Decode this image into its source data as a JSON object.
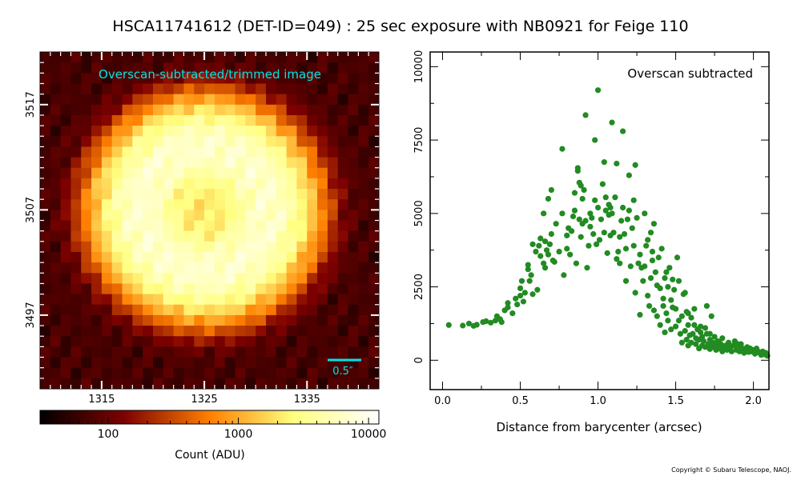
{
  "title": "HSCA11741612 (DET-ID=049) :  25 sec exposure with NB0921 for Feige 110",
  "copyright": "Copyright © Subaru Telescope, NAOJ.",
  "colors": {
    "image_label": "#00e5e5",
    "scale_bar": "#00e5e5",
    "scatter_points": "#228b22"
  },
  "chart_data": [
    {
      "type": "heatmap",
      "label": "Overscan-subtracted/trimmed image",
      "x_ticks": [
        1315,
        1325,
        1335
      ],
      "y_ticks": [
        3497,
        3507,
        3517
      ],
      "xlim": [
        1309,
        1342
      ],
      "ylim": [
        3490,
        3522
      ],
      "scale_bar_label": "0.5″",
      "colormap": "afmhot",
      "description_of_values": "ring-shaped (donut) star image centred near x=1325, y=3507; ring peak ~5000-9000 ADU, central hole ~1500 ADU, background ~50-100 ADU",
      "colorbar": {
        "scale": "log",
        "range": [
          30,
          12000
        ],
        "tick_labels": [
          "100",
          "1000",
          "10000"
        ],
        "tick_values": [
          100,
          1000,
          10000
        ],
        "label": "Count (ADU)"
      }
    },
    {
      "type": "scatter",
      "label": "Overscan subtracted",
      "xlabel": "Distance from barycenter (arcsec)",
      "ylabel": "",
      "xlim": [
        -0.08,
        2.1
      ],
      "ylim": [
        -1000,
        10500
      ],
      "x_ticks": [
        "0.0",
        "0.5",
        "1.0",
        "1.5",
        "2.0"
      ],
      "x_tick_values": [
        0.0,
        0.5,
        1.0,
        1.5,
        2.0
      ],
      "y_ticks": [
        "0",
        "2500",
        "5000",
        "7500",
        "10000"
      ],
      "y_tick_values": [
        0,
        2500,
        5000,
        7500,
        10000
      ],
      "points": [
        [
          0.04,
          1200
        ],
        [
          0.13,
          1180
        ],
        [
          0.17,
          1250
        ],
        [
          0.2,
          1170
        ],
        [
          0.22,
          1210
        ],
        [
          0.26,
          1300
        ],
        [
          0.28,
          1330
        ],
        [
          0.31,
          1280
        ],
        [
          0.34,
          1350
        ],
        [
          0.35,
          1500
        ],
        [
          0.37,
          1400
        ],
        [
          0.38,
          1300
        ],
        [
          0.4,
          1700
        ],
        [
          0.42,
          1800
        ],
        [
          0.42,
          1950
        ],
        [
          0.45,
          1600
        ],
        [
          0.47,
          2100
        ],
        [
          0.48,
          1900
        ],
        [
          0.5,
          2450
        ],
        [
          0.5,
          2200
        ],
        [
          0.51,
          2700
        ],
        [
          0.52,
          2000
        ],
        [
          0.53,
          2300
        ],
        [
          0.55,
          3100
        ],
        [
          0.55,
          3250
        ],
        [
          0.56,
          2700
        ],
        [
          0.57,
          2900
        ],
        [
          0.58,
          3950
        ],
        [
          0.58,
          2250
        ],
        [
          0.6,
          3700
        ],
        [
          0.61,
          2400
        ],
        [
          0.62,
          3900
        ],
        [
          0.63,
          3550
        ],
        [
          0.63,
          4150
        ],
        [
          0.65,
          3300
        ],
        [
          0.65,
          5000
        ],
        [
          0.66,
          3150
        ],
        [
          0.66,
          4050
        ],
        [
          0.67,
          3750
        ],
        [
          0.68,
          5500
        ],
        [
          0.68,
          3600
        ],
        [
          0.69,
          3950
        ],
        [
          0.7,
          5800
        ],
        [
          0.7,
          4300
        ],
        [
          0.71,
          3400
        ],
        [
          0.72,
          3350
        ],
        [
          0.73,
          4650
        ],
        [
          0.75,
          3700
        ],
        [
          0.77,
          7200
        ],
        [
          0.77,
          5000
        ],
        [
          0.78,
          2900
        ],
        [
          0.8,
          3800
        ],
        [
          0.8,
          4250
        ],
        [
          0.81,
          4500
        ],
        [
          0.82,
          3600
        ],
        [
          0.83,
          4400
        ],
        [
          0.84,
          4900
        ],
        [
          0.85,
          5100
        ],
        [
          0.85,
          5700
        ],
        [
          0.86,
          3300
        ],
        [
          0.87,
          6550
        ],
        [
          0.87,
          6450
        ],
        [
          0.88,
          6050
        ],
        [
          0.88,
          4800
        ],
        [
          0.89,
          5950
        ],
        [
          0.89,
          4200
        ],
        [
          0.9,
          4650
        ],
        [
          0.9,
          5500
        ],
        [
          0.91,
          5800
        ],
        [
          0.92,
          8350
        ],
        [
          0.92,
          4750
        ],
        [
          0.93,
          3150
        ],
        [
          0.94,
          3900
        ],
        [
          0.95,
          4550
        ],
        [
          0.95,
          5000
        ],
        [
          0.96,
          4850
        ],
        [
          0.97,
          4300
        ],
        [
          0.98,
          7500
        ],
        [
          0.98,
          5450
        ],
        [
          0.99,
          3950
        ],
        [
          1.0,
          9200
        ],
        [
          1.0,
          5200
        ],
        [
          1.01,
          4100
        ],
        [
          1.02,
          4800
        ],
        [
          1.03,
          6000
        ],
        [
          1.04,
          4350
        ],
        [
          1.04,
          6750
        ],
        [
          1.05,
          5100
        ],
        [
          1.05,
          5550
        ],
        [
          1.06,
          3650
        ],
        [
          1.07,
          4950
        ],
        [
          1.07,
          5300
        ],
        [
          1.08,
          4250
        ],
        [
          1.08,
          5200
        ],
        [
          1.09,
          8100
        ],
        [
          1.09,
          5000
        ],
        [
          1.1,
          4350
        ],
        [
          1.11,
          5550
        ],
        [
          1.12,
          3450
        ],
        [
          1.12,
          6700
        ],
        [
          1.13,
          3700
        ],
        [
          1.14,
          3300
        ],
        [
          1.14,
          4200
        ],
        [
          1.15,
          4750
        ],
        [
          1.16,
          7800
        ],
        [
          1.16,
          5200
        ],
        [
          1.17,
          4300
        ],
        [
          1.18,
          3800
        ],
        [
          1.18,
          2700
        ],
        [
          1.19,
          4800
        ],
        [
          1.2,
          5100
        ],
        [
          1.2,
          6300
        ],
        [
          1.21,
          3200
        ],
        [
          1.22,
          4500
        ],
        [
          1.23,
          5450
        ],
        [
          1.23,
          3900
        ],
        [
          1.24,
          2300
        ],
        [
          1.24,
          6650
        ],
        [
          1.25,
          4850
        ],
        [
          1.26,
          3300
        ],
        [
          1.27,
          1550
        ],
        [
          1.27,
          3600
        ],
        [
          1.28,
          3150
        ],
        [
          1.29,
          2700
        ],
        [
          1.3,
          5000
        ],
        [
          1.3,
          3200
        ],
        [
          1.31,
          3900
        ],
        [
          1.32,
          4100
        ],
        [
          1.32,
          2200
        ],
        [
          1.33,
          1850
        ],
        [
          1.34,
          2800
        ],
        [
          1.34,
          4350
        ],
        [
          1.35,
          3700
        ],
        [
          1.36,
          1700
        ],
        [
          1.36,
          4650
        ],
        [
          1.37,
          3000
        ],
        [
          1.38,
          2550
        ],
        [
          1.38,
          1500
        ],
        [
          1.39,
          3500
        ],
        [
          1.4,
          2450
        ],
        [
          1.4,
          1200
        ],
        [
          1.41,
          3800
        ],
        [
          1.42,
          2100
        ],
        [
          1.42,
          1850
        ],
        [
          1.43,
          950
        ],
        [
          1.43,
          2800
        ],
        [
          1.44,
          1600
        ],
        [
          1.45,
          2500
        ],
        [
          1.45,
          1350
        ],
        [
          1.46,
          3150
        ],
        [
          1.47,
          2050
        ],
        [
          1.47,
          1050
        ],
        [
          1.48,
          1800
        ],
        [
          1.49,
          2400
        ],
        [
          1.5,
          1150
        ],
        [
          1.5,
          1750
        ],
        [
          1.51,
          3500
        ],
        [
          1.52,
          1350
        ],
        [
          1.52,
          2700
        ],
        [
          1.53,
          900
        ],
        [
          1.54,
          1500
        ],
        [
          1.54,
          600
        ],
        [
          1.55,
          2250
        ],
        [
          1.56,
          1000
        ],
        [
          1.57,
          700
        ],
        [
          1.57,
          1650
        ],
        [
          1.58,
          500
        ],
        [
          1.58,
          1200
        ],
        [
          1.59,
          850
        ],
        [
          1.6,
          1450
        ],
        [
          1.6,
          600
        ],
        [
          1.61,
          900
        ],
        [
          1.62,
          1200
        ],
        [
          1.63,
          550
        ],
        [
          1.63,
          750
        ],
        [
          1.64,
          1050
        ],
        [
          1.65,
          400
        ],
        [
          1.65,
          700
        ],
        [
          1.66,
          950
        ],
        [
          1.67,
          500
        ],
        [
          1.67,
          800
        ],
        [
          1.68,
          650
        ],
        [
          1.69,
          1100
        ],
        [
          1.69,
          450
        ],
        [
          1.7,
          900
        ],
        [
          1.7,
          1850
        ],
        [
          1.71,
          550
        ],
        [
          1.72,
          700
        ],
        [
          1.72,
          380
        ],
        [
          1.73,
          1500
        ],
        [
          1.74,
          450
        ],
        [
          1.74,
          600
        ],
        [
          1.75,
          800
        ],
        [
          1.76,
          350
        ],
        [
          1.76,
          500
        ],
        [
          1.77,
          650
        ],
        [
          1.78,
          400
        ],
        [
          1.79,
          550
        ],
        [
          1.8,
          750
        ],
        [
          1.8,
          300
        ],
        [
          1.81,
          450
        ],
        [
          1.82,
          500
        ],
        [
          1.83,
          350
        ],
        [
          1.84,
          600
        ],
        [
          1.85,
          400
        ],
        [
          1.86,
          300
        ],
        [
          1.87,
          500
        ],
        [
          1.88,
          650
        ],
        [
          1.89,
          350
        ],
        [
          1.9,
          450
        ],
        [
          1.91,
          300
        ],
        [
          1.92,
          550
        ],
        [
          1.93,
          400
        ],
        [
          1.94,
          250
        ],
        [
          1.95,
          350
        ],
        [
          1.96,
          450
        ],
        [
          1.97,
          280
        ],
        [
          1.98,
          400
        ],
        [
          1.99,
          300
        ],
        [
          2.0,
          350
        ],
        [
          2.01,
          220
        ],
        [
          2.02,
          400
        ],
        [
          2.03,
          300
        ],
        [
          2.04,
          250
        ],
        [
          2.05,
          180
        ],
        [
          2.06,
          300
        ],
        [
          2.07,
          200
        ],
        [
          2.08,
          250
        ],
        [
          2.09,
          150
        ],
        [
          1.9,
          550
        ],
        [
          1.84,
          480
        ],
        [
          1.78,
          600
        ],
        [
          1.72,
          900
        ],
        [
          1.66,
          1150
        ],
        [
          1.62,
          1750
        ],
        [
          1.58,
          1600
        ],
        [
          1.56,
          2300
        ],
        [
          1.48,
          2750
        ],
        [
          1.44,
          3000
        ],
        [
          1.35,
          3400
        ]
      ]
    }
  ]
}
